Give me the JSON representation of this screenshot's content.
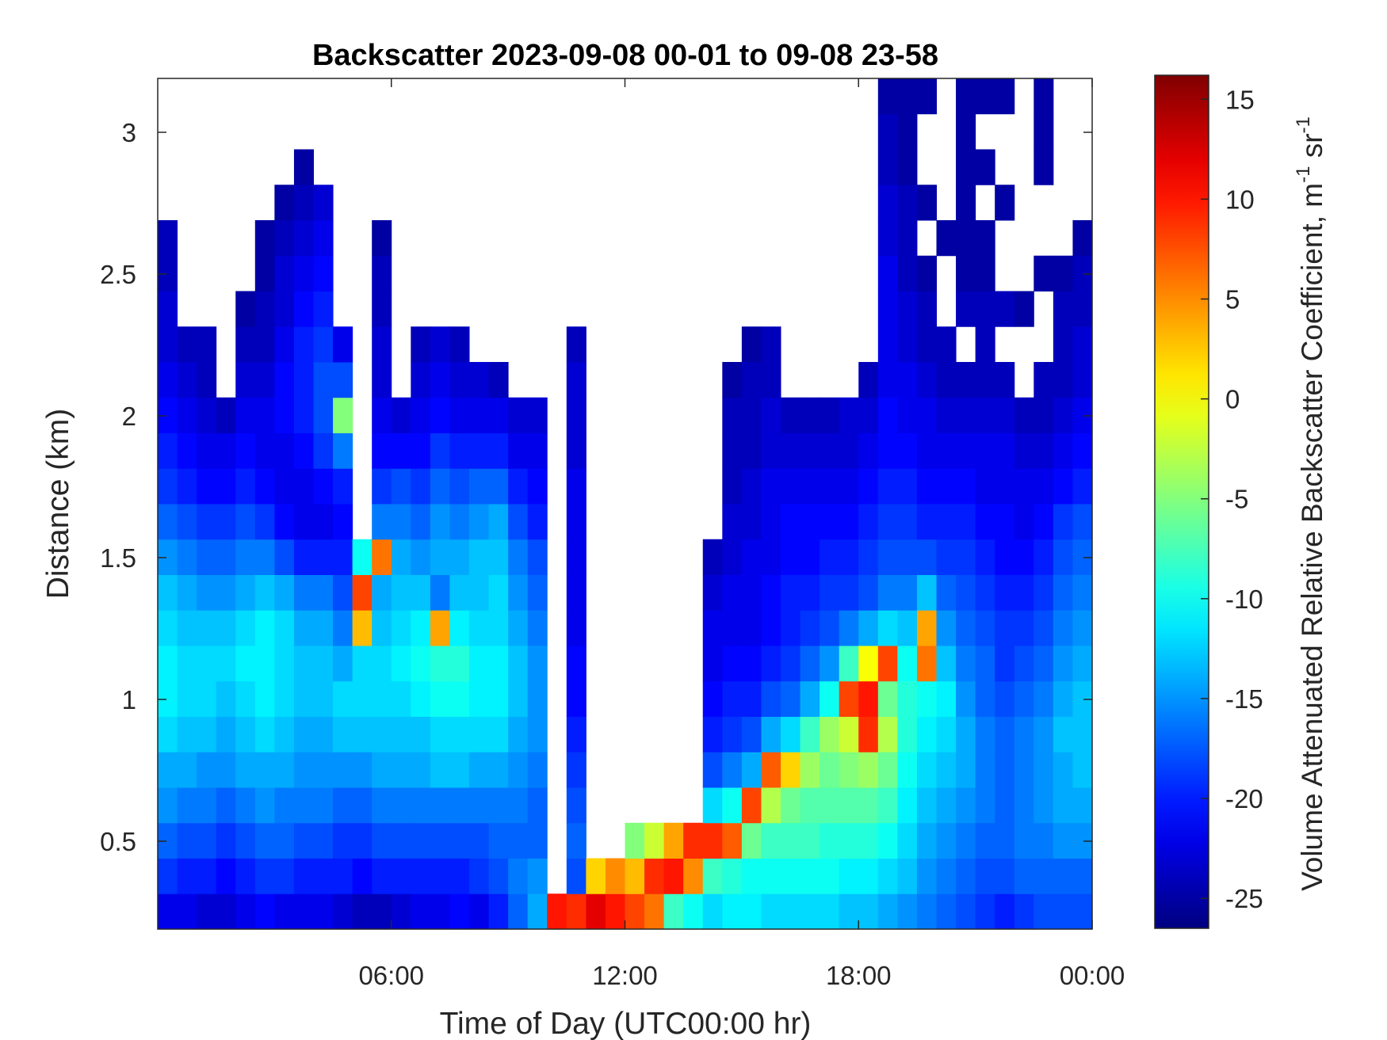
{
  "chart_data": {
    "type": "heatmap",
    "title": "Backscatter 2023-09-08 00-01 to 09-08 23-58",
    "xlabel": "Time of Day (UTC00:00 hr)",
    "ylabel": "Distance (km)",
    "colorbar_label": {
      "text": "Volume Attenuated Relative Backscatter Coefficient, m",
      "sup1": "-1",
      "mid": " sr",
      "sup2": "-1"
    },
    "xlim": [
      0,
      24
    ],
    "ylim": [
      0.19,
      3.19
    ],
    "clim": [
      -26.5,
      16.2
    ],
    "colormap": "jet",
    "x_ticks": [
      {
        "value": 6,
        "label": "06:00"
      },
      {
        "value": 12,
        "label": "12:00"
      },
      {
        "value": 18,
        "label": "18:00"
      },
      {
        "value": 24,
        "label": "00:00"
      }
    ],
    "y_ticks": [
      {
        "value": 0.5,
        "label": "0.5"
      },
      {
        "value": 1,
        "label": "1"
      },
      {
        "value": 1.5,
        "label": "1.5"
      },
      {
        "value": 2,
        "label": "2"
      },
      {
        "value": 2.5,
        "label": "2.5"
      },
      {
        "value": 3,
        "label": "3"
      }
    ],
    "colorbar_ticks": [
      {
        "value": 15,
        "label": "15"
      },
      {
        "value": 10,
        "label": "10"
      },
      {
        "value": 5,
        "label": "5"
      },
      {
        "value": 0,
        "label": "0"
      },
      {
        "value": -5,
        "label": "-5"
      },
      {
        "value": -10,
        "label": "-10"
      },
      {
        "value": -15,
        "label": "-15"
      },
      {
        "value": -20,
        "label": "-20"
      },
      {
        "value": -25,
        "label": "-25"
      }
    ],
    "x_bin_hours": 0.5,
    "y_bin_start_km": 0.19,
    "y_bin_km": 0.125,
    "values_note": "columns = time bins, each array bottom-up in height; null = no data",
    "values": [
      [
        -22,
        -19,
        -17,
        -15,
        -14,
        -12,
        -11,
        -11,
        -12,
        -13,
        -15,
        -17,
        -19,
        -20,
        -21,
        -22,
        -23,
        -23,
        -24,
        -24
      ],
      [
        -22,
        -20,
        -18,
        -16,
        -14,
        -13,
        -12,
        -12,
        -13,
        -14,
        -16,
        -18,
        -20,
        -21,
        -22,
        -23,
        -24
      ],
      [
        -23,
        -20,
        -18,
        -16,
        -15,
        -13,
        -12,
        -12,
        -13,
        -15,
        -17,
        -19,
        -21,
        -22,
        -23,
        -24,
        -24
      ],
      [
        -23,
        -21,
        -19,
        -17,
        -15,
        -14,
        -13,
        -12,
        -13,
        -15,
        -17,
        -19,
        -21,
        -22,
        -24
      ],
      [
        -22,
        -20,
        -18,
        -16,
        -14,
        -13,
        -12,
        -11,
        -12,
        -14,
        -16,
        -18,
        -20,
        -21,
        -22,
        -23,
        -24,
        -25
      ],
      [
        -21,
        -19,
        -17,
        -15,
        -14,
        -12,
        -11,
        -11,
        -11,
        -13,
        -16,
        -19,
        -21,
        -22,
        -22,
        -23,
        -24,
        -24,
        -25,
        -25
      ],
      [
        -22,
        -19,
        -17,
        -16,
        -14,
        -13,
        -12,
        -12,
        -12,
        -14,
        -18,
        -21,
        -22,
        -22,
        -21,
        -21,
        -22,
        -23,
        -23,
        -24,
        -25
      ],
      [
        -22,
        -20,
        -18,
        -16,
        -15,
        -14,
        -13,
        -13,
        -14,
        -16,
        -20,
        -22,
        -22,
        -21,
        -20,
        -20,
        -20,
        -21,
        -22,
        -23,
        -24,
        -25
      ],
      [
        -22,
        -20,
        -18,
        -16,
        -15,
        -14,
        -13,
        -13,
        -14,
        -16,
        -20,
        -22,
        -21,
        -19,
        -18,
        -18,
        -19,
        -20,
        -21,
        -22,
        -23
      ],
      [
        -23,
        -20,
        -19,
        -17,
        -15,
        -13,
        -12,
        -14,
        -16,
        -18,
        -20,
        -21,
        -20,
        -16,
        -5,
        -18,
        -22
      ],
      [
        -24,
        -21,
        -19,
        -17,
        -15,
        -13,
        -12,
        -12,
        3,
        8,
        -10
      ],
      [
        -24,
        -20,
        -18,
        -16,
        -14,
        -13,
        -12,
        -12,
        -13,
        -14,
        6,
        -16,
        -19,
        -21,
        -22,
        -23,
        -23,
        -24,
        -24,
        -25
      ],
      [
        -23,
        -20,
        -18,
        -16,
        -14,
        -13,
        -12,
        -11,
        -12,
        -13,
        -14,
        -16,
        -18,
        -21,
        -23
      ],
      [
        -22,
        -20,
        -18,
        -16,
        -14,
        -13,
        -11,
        -10,
        -11,
        -13,
        -15,
        -17,
        -19,
        -21,
        -22,
        -23,
        -24
      ],
      [
        -22,
        -20,
        -18,
        -16,
        -13,
        -12,
        -10,
        -9,
        4,
        -16,
        -14,
        -15,
        -17,
        -19,
        -21,
        -22,
        -23
      ],
      [
        -21,
        -20,
        -18,
        -16,
        -13,
        -12,
        -10,
        -9,
        -11,
        -13,
        -14,
        -16,
        -18,
        -20,
        -22,
        -23,
        -24
      ],
      [
        -22,
        -19,
        -18,
        -16,
        -14,
        -12,
        -11,
        -11,
        -12,
        -13,
        -13,
        -15,
        -17,
        -20,
        -22,
        -23
      ],
      [
        -20,
        -18,
        -17,
        -16,
        -14,
        -12,
        -11,
        -11,
        -12,
        -12,
        -13,
        -14,
        -17,
        -20,
        -22,
        -24
      ],
      [
        -17,
        -16,
        -17,
        -16,
        -15,
        -14,
        -13,
        -13,
        -14,
        -15,
        -16,
        -18,
        -20,
        -22,
        -23
      ],
      [
        -14,
        -15,
        -17,
        -17,
        -16,
        -15,
        -15,
        -15,
        -16,
        -17,
        -18,
        -20,
        -21,
        -22,
        -23
      ],
      [
        10
      ],
      [
        9,
        -18,
        -17,
        -18,
        -19,
        -20,
        -21,
        -21,
        -22,
        -22,
        -22,
        -22,
        -22,
        -23,
        -23,
        -23,
        -24
      ],
      [
        12,
        2
      ],
      [
        10,
        5
      ],
      [
        8,
        3,
        -5
      ],
      [
        6,
        9,
        -2
      ],
      [
        -8,
        10,
        4
      ],
      [
        -10,
        5,
        9
      ],
      [
        -12,
        -8,
        9,
        -12,
        -18,
        -20,
        -21,
        -22,
        -22,
        -23,
        -24
      ],
      [
        -11,
        -9,
        7,
        -10,
        -16,
        -19,
        -20,
        -21,
        -22,
        -22,
        -23,
        -23,
        -24,
        -24,
        -24,
        -25
      ],
      [
        -11,
        -10,
        -6,
        8,
        -14,
        -18,
        -20,
        -21,
        -22,
        -22,
        -22,
        -23,
        -23,
        -24,
        -24,
        -24,
        -25
      ],
      [
        -12,
        -10,
        -8,
        -3,
        7,
        -14,
        -18,
        -20,
        -21,
        -21,
        -22,
        -22,
        -22,
        -23,
        -23,
        -24,
        -24
      ],
      [
        -12,
        -10,
        -8,
        -6,
        2,
        -12,
        -17,
        -19,
        -20,
        -20,
        -21,
        -21,
        -22,
        -23,
        -24
      ],
      [
        -12,
        -10,
        -8,
        -7,
        -4,
        -8,
        -14,
        -17,
        -19,
        -20,
        -21,
        -21,
        -22,
        -23,
        -24
      ],
      [
        -12,
        -10,
        -9,
        -7,
        -6,
        -4,
        -10,
        -15,
        -18,
        -19,
        -20,
        -21,
        -22,
        -23,
        -24
      ],
      [
        -13,
        -11,
        -9,
        -7,
        -5,
        -2,
        8,
        -8,
        -16,
        -19,
        -20,
        -21,
        -22,
        -23,
        -23
      ],
      [
        -13,
        -11,
        -9,
        -7,
        -4,
        9,
        10,
        0,
        -14,
        -18,
        -19,
        -20,
        -21,
        -22,
        -23,
        -24
      ],
      [
        -14,
        -12,
        -10,
        -8,
        -6,
        -3,
        -6,
        8,
        -12,
        -16,
        -18,
        -19,
        -20,
        -21,
        -21,
        -22,
        -22,
        -22,
        -22,
        -23,
        -23,
        -24,
        -24,
        -25
      ],
      [
        -15,
        -13,
        -12,
        -11,
        -10,
        -9,
        -9,
        -10,
        -13,
        -16,
        -18,
        -19,
        -20,
        -21,
        -22,
        -22,
        -23,
        -23,
        -24,
        -24,
        -24,
        -25,
        -25,
        -25
      ],
      [
        -16,
        -15,
        -14,
        -13,
        -12,
        -11,
        -10,
        6,
        4,
        -13,
        -18,
        -20,
        -21,
        -22,
        -22,
        -23,
        -24,
        -24,
        -25,
        null,
        -25,
        null,
        null,
        -25
      ],
      [
        -17,
        -16,
        -15,
        -14,
        -13,
        -12,
        -11,
        -13,
        -15,
        -17,
        -19,
        -20,
        -21,
        -22,
        -23,
        -24,
        -24,
        null,
        null,
        -25
      ],
      [
        -18,
        -17,
        -16,
        -15,
        -14,
        -14,
        -15,
        -16,
        -17,
        -18,
        -19,
        -20,
        -21,
        -22,
        -23,
        -24,
        null,
        -24,
        -25,
        -25,
        -25,
        -25,
        -25,
        -25
      ],
      [
        -19,
        -18,
        -17,
        -16,
        -16,
        -16,
        -17,
        -17,
        -18,
        -19,
        -20,
        -21,
        -22,
        -22,
        -23,
        -24,
        -24,
        -24,
        -25,
        -25,
        null,
        -25,
        null,
        -25
      ],
      [
        -20,
        -18,
        -17,
        -17,
        -17,
        -17,
        -18,
        -19,
        -19,
        -20,
        -21,
        -21,
        -22,
        -22,
        -23,
        -24,
        null,
        -24,
        null,
        null,
        -25,
        null,
        null,
        -25
      ],
      [
        -19,
        -17,
        -16,
        -16,
        -16,
        -16,
        -17,
        -18,
        -19,
        -20,
        -21,
        -22,
        -22,
        -23,
        -24,
        null,
        null,
        -25
      ],
      [
        -18,
        -17,
        -16,
        -15,
        -15,
        -15,
        -16,
        -17,
        -18,
        -19,
        -20,
        -21,
        -22,
        -23,
        -24,
        -24,
        null,
        null,
        -25,
        null,
        null,
        -25,
        -25,
        -25
      ],
      [
        -18,
        -17,
        -15,
        -14,
        -14,
        -13,
        -14,
        -15,
        -16,
        -17,
        -18,
        -19,
        -21,
        -22,
        -23,
        -24,
        -24,
        -24,
        -25
      ],
      [
        -18,
        -17,
        -15,
        -14,
        -13,
        -13,
        -13,
        -14,
        -15,
        -16,
        -17,
        -18,
        -20,
        -21,
        -22,
        -23,
        -23,
        -24,
        -24,
        -25
      ]
    ]
  }
}
